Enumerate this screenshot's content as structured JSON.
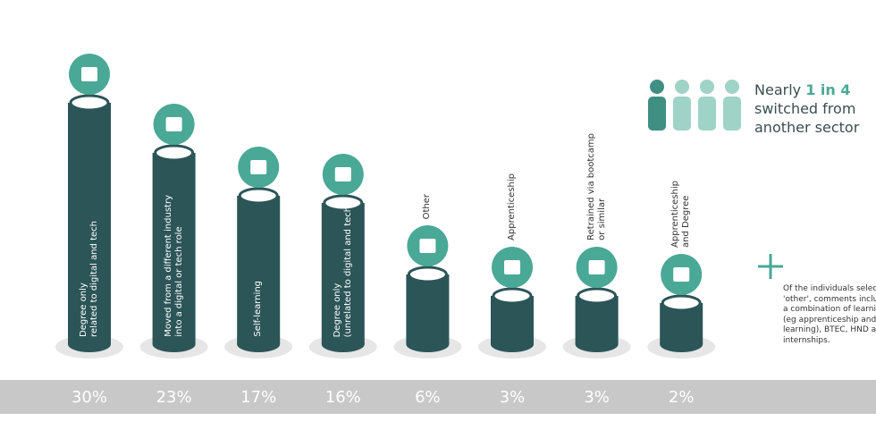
{
  "chart_data": {
    "type": "bar",
    "categories": [
      "Degree only\nrelated to digital and tech",
      "Moved from a different industry\ninto a digital or tech role",
      "Self-learning",
      "Degree only\n(unrelated to digital and tech)",
      "Other",
      "Apprenticeship",
      "Retrained via bootcamp\nor similar",
      "Apprenticeship\nand Degree"
    ],
    "values": [
      30,
      23,
      17,
      16,
      6,
      3,
      3,
      2
    ],
    "value_labels": [
      "30%",
      "23%",
      "17%",
      "16%",
      "6%",
      "3%",
      "3%",
      "2%"
    ],
    "color": "#2c5558",
    "callout": {
      "before": "Nearly",
      "highlight": "1 in 4",
      "after": "switched from\nanother sector"
    },
    "note": "Of the individuals selected 'other', comments included a combination of learning (eg apprenticeship and self-learning), BTEC, HND and internships."
  }
}
